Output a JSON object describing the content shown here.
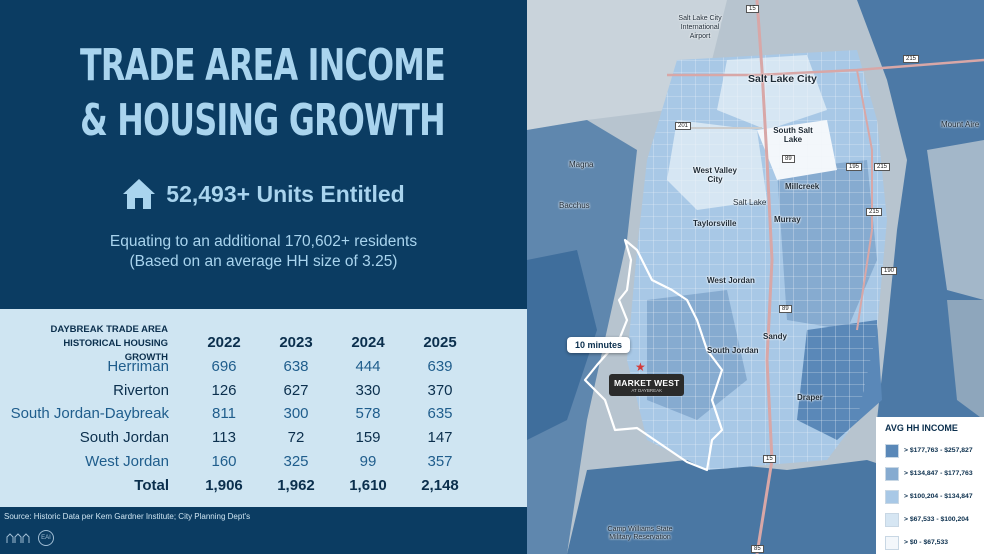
{
  "title": {
    "line1": "TRADE AREA INCOME",
    "line2": "& HOUSING GROWTH"
  },
  "units": {
    "icon": "house-icon",
    "text": "52,493+ Units Entitled"
  },
  "equating": {
    "line1": "Equating to an additional 170,602+ residents",
    "line2": "(Based on an average HH size of 3.25)"
  },
  "table": {
    "label_line1": "DAYBREAK TRADE AREA",
    "label_line2": "HISTORICAL HOUSING GROWTH",
    "years": [
      "2022",
      "2023",
      "2024",
      "2025"
    ],
    "rows": [
      {
        "name": "Herriman",
        "values": [
          "696",
          "638",
          "444",
          "639"
        ]
      },
      {
        "name": "Riverton",
        "values": [
          "126",
          "627",
          "330",
          "370"
        ]
      },
      {
        "name": "South Jordan-Daybreak",
        "values": [
          "811",
          "300",
          "578",
          "635"
        ]
      },
      {
        "name": "South Jordan",
        "values": [
          "113",
          "72",
          "159",
          "147"
        ]
      },
      {
        "name": "West Jordan",
        "values": [
          "160",
          "325",
          "99",
          "357"
        ]
      }
    ],
    "total": {
      "name": "Total",
      "values": [
        "1,906",
        "1,962",
        "1,610",
        "2,148"
      ]
    }
  },
  "source": "Source: Historic Data per Kem Gardner Institute; City Planning Dept's",
  "logo_text": "EAI",
  "map": {
    "places": {
      "airport": "Salt Lake City International Airport",
      "slc": "Salt Lake City",
      "south_salt_lake": "South Salt Lake",
      "magna": "Magna",
      "west_valley": "West Valley City",
      "millcreek": "Millcreek",
      "salt_lake": "Salt Lake",
      "bacchus": "Bacchus",
      "taylorsville": "Taylorsville",
      "murray": "Murray",
      "west_jordan": "West Jordan",
      "sandy": "Sandy",
      "south_jordan": "South Jordan",
      "draper": "Draper",
      "mount_aire": "Mount Aire",
      "camp_williams": "Camp Williams State Military Reservation"
    },
    "shields": [
      "15",
      "215",
      "201",
      "89",
      "195",
      "215",
      "215",
      "190",
      "89",
      "15",
      "85"
    ],
    "drive_time_label": "10 minutes",
    "marker": {
      "name": "MARKET WEST",
      "sub": "AT DAYBREAK"
    },
    "legend": {
      "title": "AVG HH INCOME",
      "items": [
        {
          "label": "> $177,763 - $257,827",
          "color": "#5a88b8"
        },
        {
          "label": "> $134,847 - $177,763",
          "color": "#86abd0"
        },
        {
          "label": "> $100,204 - $134,847",
          "color": "#a8c8e6"
        },
        {
          "label": "> $67,533 - $100,204",
          "color": "#d6e6f3"
        },
        {
          "label": "> $0 - $67,533",
          "color": "#f3f7fb"
        }
      ]
    }
  }
}
